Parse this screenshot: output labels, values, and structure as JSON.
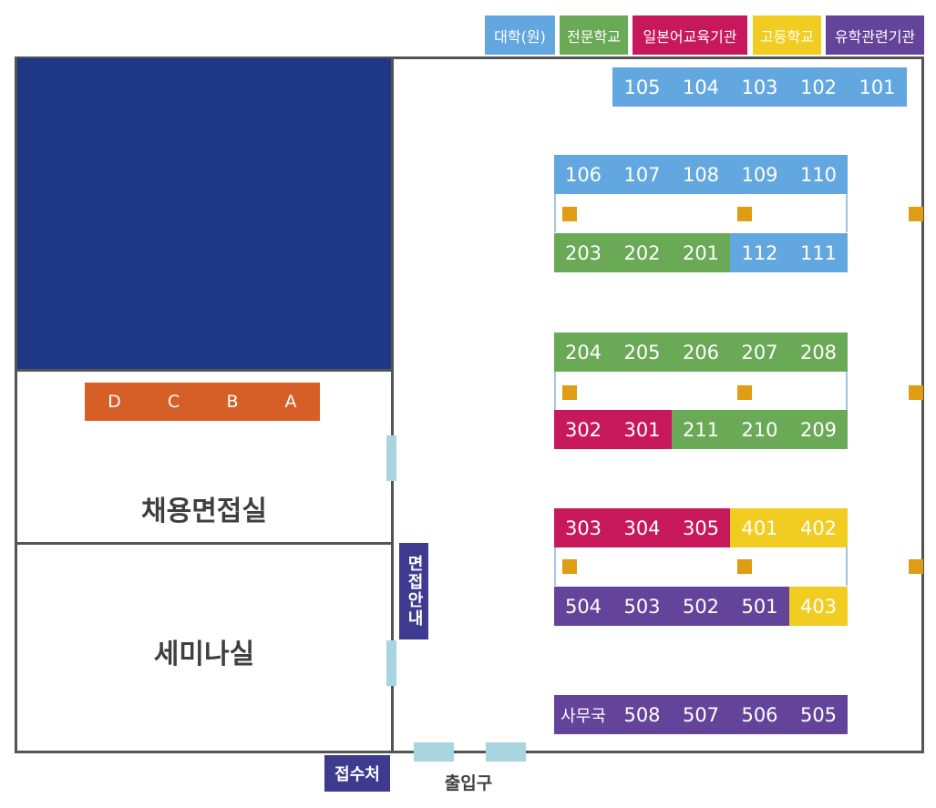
{
  "legend": [
    {
      "label": "대학(원)",
      "color": "#63a7e0"
    },
    {
      "label": "전문학교",
      "color": "#6aa956"
    },
    {
      "label": "일본어교육기관",
      "color": "#c8185c"
    },
    {
      "label": "고등학교",
      "color": "#f2cd21"
    },
    {
      "label": "유학관련기관",
      "color": "#64449a"
    }
  ],
  "booth_rows": {
    "row_101_105": [
      "105",
      "104",
      "103",
      "102",
      "101"
    ],
    "row_106_110": [
      "106",
      "107",
      "108",
      "109",
      "110"
    ],
    "row_203_111": [
      "203",
      "202",
      "201",
      "112",
      "111"
    ],
    "row_204_208": [
      "204",
      "205",
      "206",
      "207",
      "208"
    ],
    "row_302_209": [
      "302",
      "301",
      "211",
      "210",
      "209"
    ],
    "row_303_402": [
      "303",
      "304",
      "305",
      "401",
      "402"
    ],
    "row_504_403": [
      "504",
      "503",
      "502",
      "501",
      "403"
    ],
    "row_office_505": [
      "사무국",
      "508",
      "507",
      "506",
      "505"
    ]
  },
  "interview_booths": [
    "D",
    "C",
    "B",
    "A"
  ],
  "rooms": {
    "interview_room": "채용면접실",
    "seminar_room": "세미나실"
  },
  "interview_guide": "면접안내",
  "reception": "접수처",
  "entrance": "출입구",
  "colors": {
    "university": "#63a7e0",
    "vocational": "#6aa956",
    "language_school": "#c8185c",
    "high_school": "#f2cd21",
    "study_abroad_agency": "#64449a",
    "interview_booth": "#d65f27",
    "blocked_area": "#1f3886",
    "wall": "#545454",
    "door": "#a8d5e0",
    "pillar": "#e09c12"
  }
}
